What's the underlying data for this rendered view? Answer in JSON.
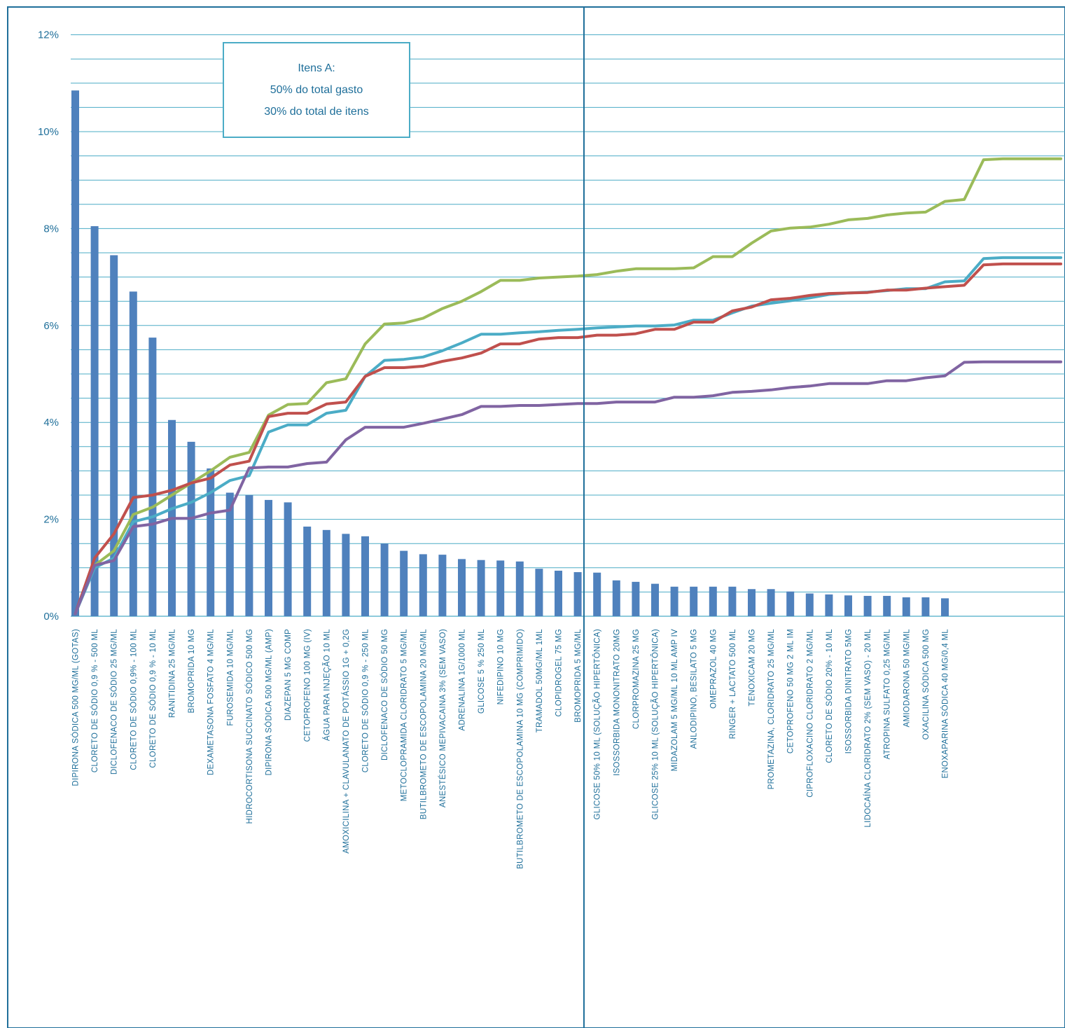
{
  "chart_data": {
    "type": "bar",
    "title": "",
    "xlabel": "",
    "ylabel": "",
    "ylim": [
      0,
      12
    ],
    "yticks": [
      "0%",
      "2%",
      "4%",
      "6%",
      "8%",
      "10%",
      "12%"
    ],
    "grid": true,
    "annotation": {
      "lines": [
        "Itens A:",
        "50% do total gasto",
        "30% do total de itens"
      ]
    },
    "categories": [
      "DIPIRONA SÓDICA 500 MG/ML (GOTAS)",
      "CLORETO DE SÓDIO 0,9 % - 500 ML",
      "DICLOFENACO DE SÓDIO 25 MG/ML",
      "CLORETO DE SÓDIO 0,9% - 100 ML",
      "CLORETO DE SÓDIO 0,9 % - 10 ML",
      "RANITIDINA 25 MG/ML",
      "BROMOPRIDA 10 MG",
      "DEXAMETASONA FOSFATO 4 MG/ML",
      "FUROSEMIDA 10 MG/ML",
      "HIDROCORTISONA SUCCINATO SÓDICO 500 MG",
      "DIPIRONA SÓDICA 500 MG/ML (AMP)",
      "DIAZEPAN 5 MG COMP",
      "CETOPROFENO 100 MG (IV)",
      "ÁGUA PARA INJEÇÃO 10 ML",
      "AMOXICILINA + CLAVULANATO DE POTÁSSIO 1G + 0,2G",
      "CLORETO DE SÓDIO 0,9 % - 250 ML",
      "DICLOFENACO DE SÓDIO 50 MG",
      "METOCLOPRAMIDA CLORIDRATO 5 MG/ML",
      "BUTILBROMETO DE ESCOPOLAMINA 20 MG/ML",
      "ANESTÉSICO MEPIVACAINA 3% (SEM VASO)",
      "ADRENALINA 1G/1000 ML",
      "GLICOSE 5 % 250 ML",
      "NIFEDIPINO 10 MG",
      "BUTILBROMETO DE ESCOPOLAMINA 10 MG (COMPRIMIDO)",
      "TRAMADOL 50MG/ML 1ML",
      "CLOPIDROGEL 75 MG",
      "BROMOPRIDA 5 MG/ML",
      "GLICOSE 50% 10 ML (SOLUÇÃO HIPERTÔNICA)",
      "ISOSSORBIDA MONONITRATO 20MG",
      "CLORPROMAZINA 25 MG",
      "GLICOSE 25% 10 ML (SOLUÇÃO HIPERTÔNICA)",
      "MIDAZOLAM 5 MG/ML 10 ML AMP IV",
      "ANLODIPINO, BESILATO 5 MG",
      "OMEPRAZOL 40 MG",
      "RINGER + LACTATO 500 ML",
      "TENOXICAM 20 MG",
      "PROMETAZINA, CLORIDRATO 25 MG/ML",
      "CETOPROFENO 50 MG 2 ML IM",
      "CIPROFLOXACINO CLORIDRATO 2 MG/ML",
      "CLORETO DE SÓDIO 20% - 10 ML",
      "ISOSSORBIDA DINITRATO 5MG",
      "LIDOCAÍNA CLORIDRATO 2% (SEM VASO) - 20 ML",
      "ATROPINA SULFATO 0,25 MG/ML",
      "AMIODARONA 50 MG/ML",
      "OXACILINA SÓDICA 500 MG",
      "ENOXAPARINA SÓDICA 40 MG/0,4 ML"
    ],
    "series": [
      {
        "chart_kind": "bar",
        "color": "#4f81bd",
        "values": [
          10.85,
          8.05,
          7.45,
          6.7,
          5.75,
          4.05,
          3.6,
          3.05,
          2.55,
          2.5,
          2.4,
          2.35,
          1.85,
          1.78,
          1.7,
          1.65,
          1.5,
          1.35,
          1.28,
          1.27,
          1.18,
          1.16,
          1.15,
          1.13,
          0.98,
          0.94,
          0.91,
          0.9,
          0.74,
          0.71,
          0.67,
          0.61,
          0.61,
          0.61,
          0.61,
          0.56,
          0.56,
          0.51,
          0.47,
          0.45,
          0.43,
          0.42,
          0.42,
          0.39,
          0.39,
          0.37
        ]
      },
      {
        "chart_kind": "line",
        "color": "#9bbb59",
        "x": [
          0,
          1,
          2,
          3,
          4,
          5,
          6,
          7,
          8,
          9,
          10,
          11,
          12,
          13,
          14,
          15,
          16,
          17,
          18,
          19,
          20,
          21,
          22,
          23,
          24,
          25,
          26,
          27,
          28,
          29,
          30,
          31,
          32,
          33,
          34,
          35,
          36,
          37,
          38,
          39,
          40,
          41,
          42,
          43,
          44,
          45,
          46,
          47,
          48,
          49,
          50,
          51
        ],
        "values": [
          0.05,
          1.05,
          1.35,
          2.1,
          2.25,
          2.5,
          2.75,
          3.0,
          3.28,
          3.38,
          4.15,
          4.37,
          4.39,
          4.82,
          4.9,
          5.62,
          6.03,
          6.05,
          6.15,
          6.35,
          6.5,
          6.7,
          6.93,
          6.93,
          6.98,
          7.0,
          7.02,
          7.05,
          7.12,
          7.17,
          7.17,
          7.17,
          7.19,
          7.42,
          7.42,
          7.7,
          7.95,
          8.01,
          8.03,
          8.09,
          8.18,
          8.21,
          8.28,
          8.32,
          8.34,
          8.56,
          8.6,
          9.42,
          9.44,
          9.44,
          9.44,
          9.44
        ]
      },
      {
        "chart_kind": "line",
        "color": "#4bacc6",
        "x": [
          0,
          1,
          2,
          3,
          4,
          5,
          6,
          7,
          8,
          9,
          10,
          11,
          12,
          13,
          14,
          15,
          16,
          17,
          18,
          19,
          20,
          21,
          22,
          23,
          24,
          25,
          26,
          27,
          28,
          29,
          30,
          31,
          32,
          33,
          34,
          35,
          36,
          37,
          38,
          39,
          40,
          41,
          42,
          43,
          44,
          45,
          46,
          47,
          48,
          49,
          50,
          51
        ],
        "values": [
          0.05,
          1.0,
          1.2,
          1.95,
          2.05,
          2.22,
          2.35,
          2.55,
          2.8,
          2.9,
          3.8,
          3.95,
          3.95,
          4.19,
          4.25,
          4.95,
          5.28,
          5.3,
          5.35,
          5.48,
          5.64,
          5.82,
          5.82,
          5.85,
          5.87,
          5.9,
          5.92,
          5.95,
          5.97,
          5.99,
          5.99,
          6.01,
          6.11,
          6.11,
          6.26,
          6.4,
          6.46,
          6.51,
          6.57,
          6.64,
          6.67,
          6.69,
          6.72,
          6.76,
          6.76,
          6.9,
          6.92,
          7.38,
          7.4,
          7.4,
          7.4,
          7.4
        ]
      },
      {
        "chart_kind": "line",
        "color": "#c0504d",
        "x": [
          0,
          1,
          2,
          3,
          4,
          5,
          6,
          7,
          8,
          9,
          10,
          11,
          12,
          13,
          14,
          15,
          16,
          17,
          18,
          19,
          20,
          21,
          22,
          23,
          24,
          25,
          26,
          27,
          28,
          29,
          30,
          31,
          32,
          33,
          34,
          35,
          36,
          37,
          38,
          39,
          40,
          41,
          42,
          43,
          44,
          45,
          46,
          47,
          48,
          49,
          50,
          51
        ],
        "values": [
          0.05,
          1.2,
          1.7,
          2.45,
          2.5,
          2.6,
          2.75,
          2.85,
          3.12,
          3.2,
          4.12,
          4.19,
          4.19,
          4.38,
          4.42,
          4.95,
          5.13,
          5.13,
          5.16,
          5.26,
          5.33,
          5.43,
          5.62,
          5.62,
          5.72,
          5.75,
          5.75,
          5.8,
          5.8,
          5.83,
          5.92,
          5.92,
          6.07,
          6.07,
          6.3,
          6.38,
          6.53,
          6.56,
          6.62,
          6.66,
          6.67,
          6.68,
          6.73,
          6.73,
          6.77,
          6.8,
          6.83,
          7.25,
          7.27,
          7.27,
          7.27,
          7.27
        ]
      },
      {
        "chart_kind": "line",
        "color": "#8064a2",
        "x": [
          0,
          1,
          2,
          3,
          4,
          5,
          6,
          7,
          8,
          9,
          10,
          11,
          12,
          13,
          14,
          15,
          16,
          17,
          18,
          19,
          20,
          21,
          22,
          23,
          24,
          25,
          26,
          27,
          28,
          29,
          30,
          31,
          32,
          33,
          34,
          35,
          36,
          37,
          38,
          39,
          40,
          41,
          42,
          43,
          44,
          45,
          46,
          47,
          48,
          49,
          50,
          51
        ],
        "values": [
          0.05,
          1.05,
          1.15,
          1.85,
          1.9,
          2.02,
          2.02,
          2.13,
          2.19,
          3.06,
          3.08,
          3.08,
          3.15,
          3.18,
          3.64,
          3.9,
          3.9,
          3.9,
          3.98,
          4.07,
          4.16,
          4.33,
          4.33,
          4.35,
          4.35,
          4.37,
          4.39,
          4.39,
          4.42,
          4.42,
          4.42,
          4.52,
          4.52,
          4.55,
          4.62,
          4.64,
          4.67,
          4.72,
          4.75,
          4.8,
          4.8,
          4.8,
          4.86,
          4.86,
          4.92,
          4.96,
          5.24,
          5.25,
          5.25,
          5.25,
          5.25,
          5.25
        ]
      }
    ]
  }
}
